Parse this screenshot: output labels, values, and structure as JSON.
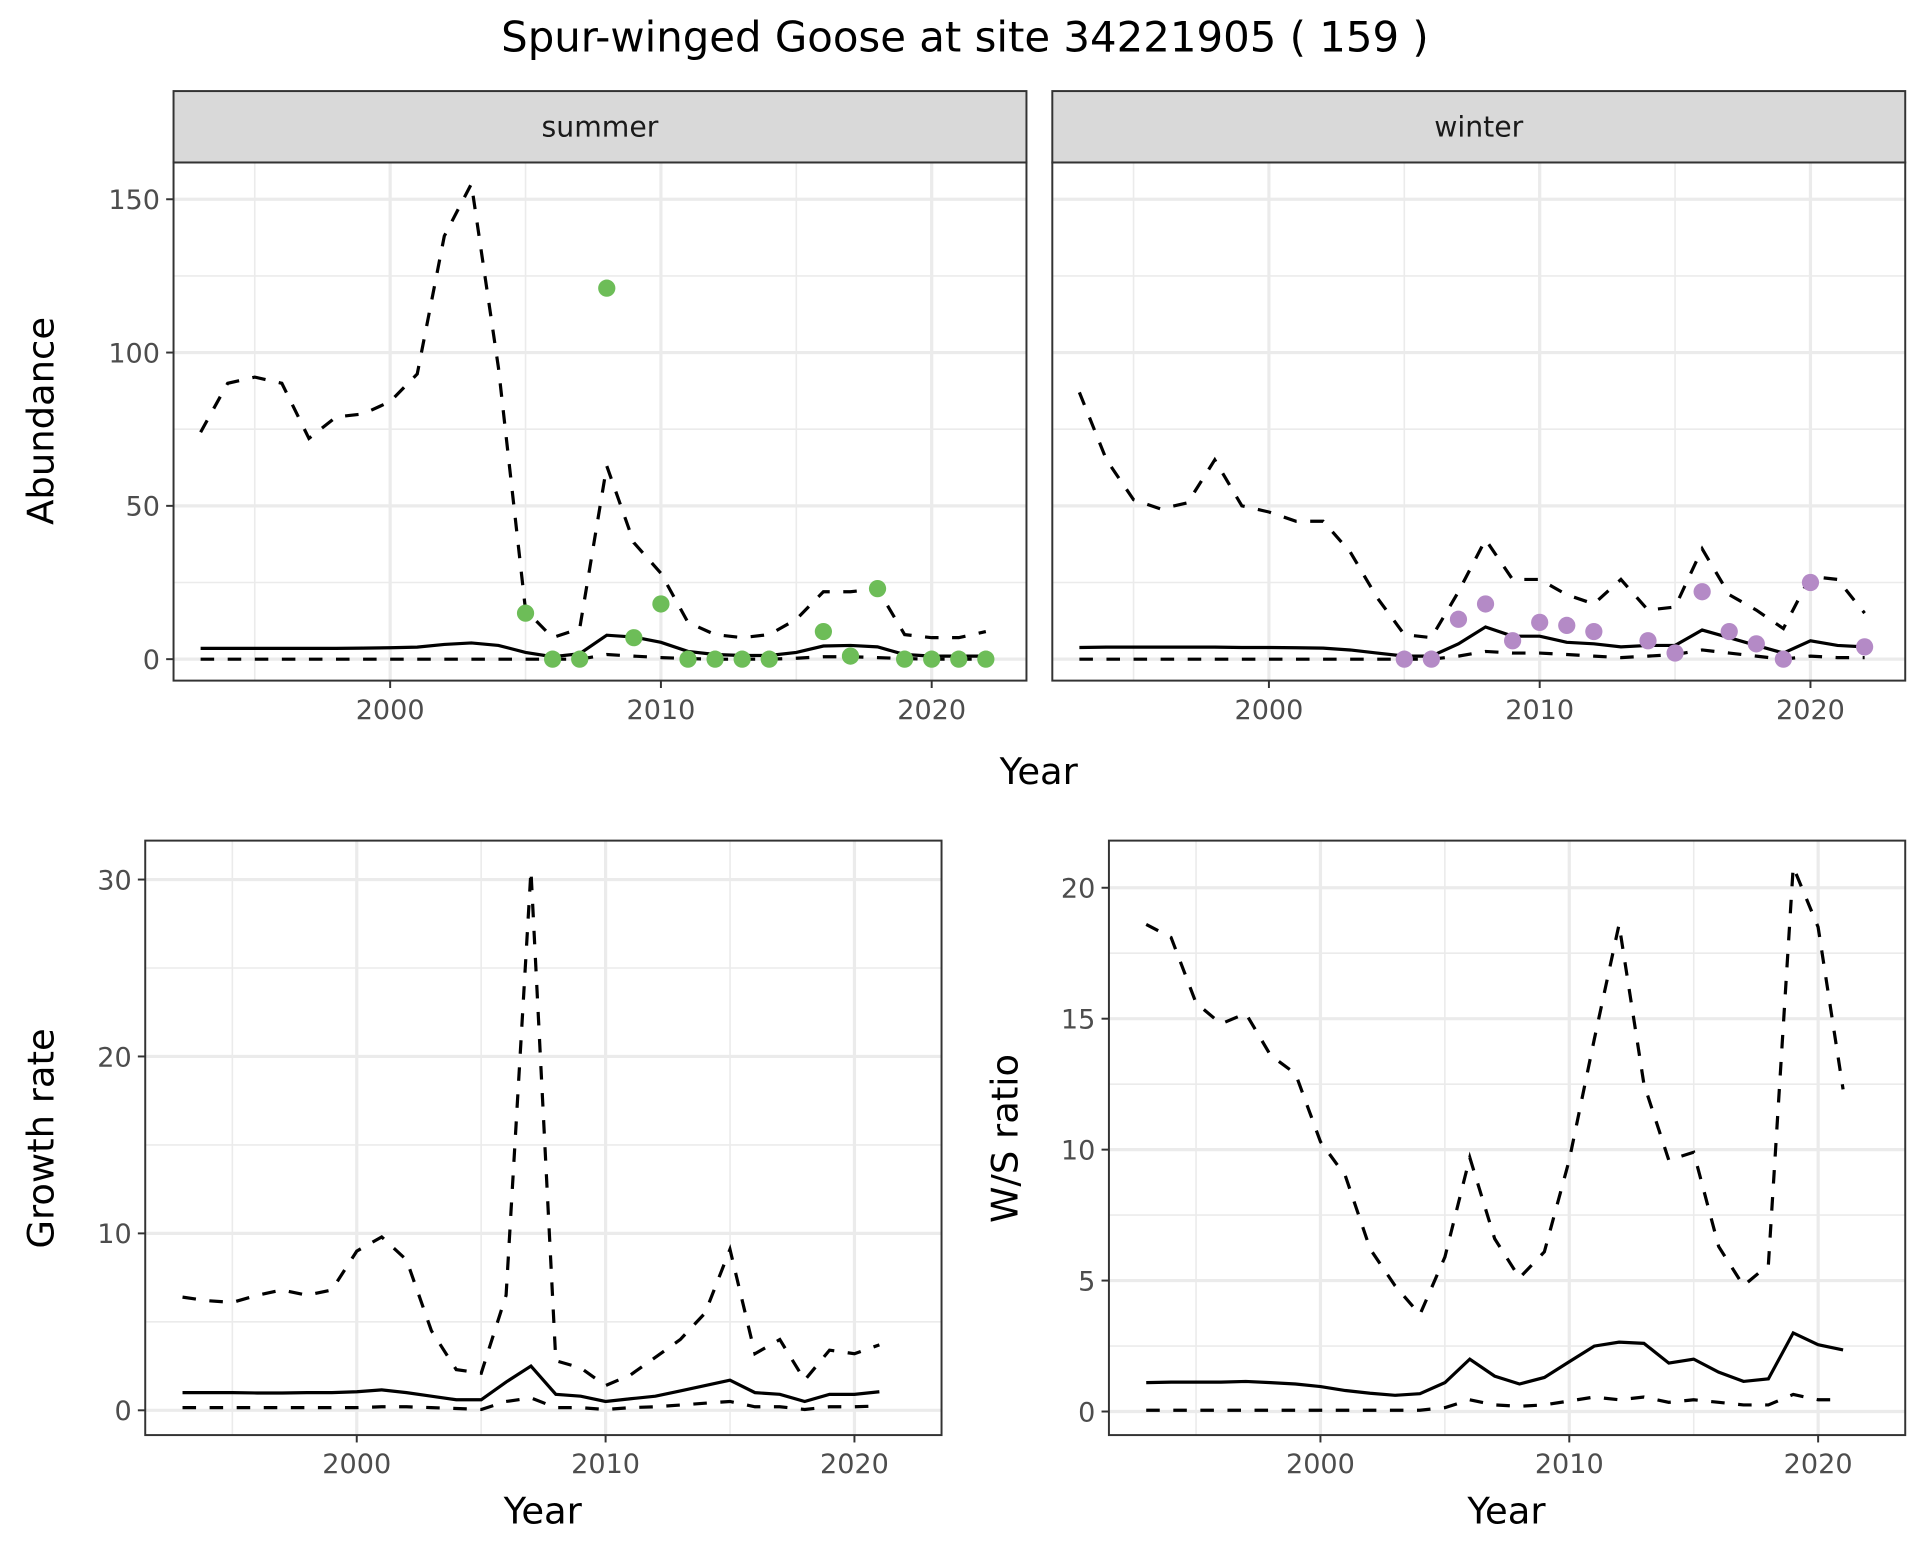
{
  "title": "Spur-winged Goose at site 34221905 ( 159 )",
  "colors": {
    "summer_points": "#6dbd58",
    "winter_points": "#b48ac6",
    "lines": "#000000",
    "grid": "#ebebeb",
    "strip": "#d9d9d9"
  },
  "chart_data": [
    {
      "type": "line",
      "facet": "summer",
      "ylabel": "Abundance",
      "xlabel": "Year",
      "xlim": [
        1992,
        2023.5
      ],
      "ylim": [
        -7,
        162
      ],
      "xticks": [
        2000,
        2010,
        2020
      ],
      "yticks": [
        0,
        50,
        100,
        150
      ],
      "grid": true,
      "x": [
        1993,
        1994,
        1995,
        1996,
        1997,
        1998,
        1999,
        2000,
        2001,
        2002,
        2003,
        2004,
        2005,
        2006,
        2007,
        2008,
        2009,
        2010,
        2011,
        2012,
        2013,
        2014,
        2015,
        2016,
        2017,
        2018,
        2019,
        2020,
        2021,
        2022
      ],
      "upper": [
        74,
        90,
        92,
        90,
        72,
        79,
        80,
        84,
        93,
        138,
        155,
        95,
        16,
        7,
        10,
        63,
        38,
        28,
        12,
        8,
        7,
        8,
        13,
        22,
        22,
        23,
        8,
        7,
        7,
        9
      ],
      "mean": [
        3.5,
        3.5,
        3.5,
        3.5,
        3.5,
        3.5,
        3.6,
        3.7,
        3.9,
        4.8,
        5.3,
        4.5,
        2.2,
        0.8,
        1.8,
        7.8,
        7.2,
        5.5,
        2.5,
        1.5,
        1.2,
        1.2,
        2.2,
        4.3,
        4.5,
        4,
        1.5,
        1,
        1,
        1
      ],
      "lower": [
        0,
        0,
        0,
        0,
        0,
        0,
        0,
        0,
        0,
        0,
        0,
        0,
        0,
        0,
        0,
        1.5,
        1,
        0.5,
        0.2,
        0,
        0,
        0,
        0.3,
        0.8,
        0.8,
        0.5,
        0.2,
        0,
        0,
        0
      ],
      "points": {
        "x": [
          2005,
          2006,
          2007,
          2008,
          2009,
          2010,
          2011,
          2012,
          2013,
          2014,
          2016,
          2017,
          2018,
          2019,
          2020,
          2021,
          2022
        ],
        "y": [
          15,
          0,
          0,
          121,
          7,
          18,
          0,
          0,
          0,
          0,
          9,
          1,
          23,
          0,
          0,
          0,
          0
        ]
      }
    },
    {
      "type": "line",
      "facet": "winter",
      "xlabel": "Year",
      "xlim": [
        1992,
        2023.5
      ],
      "ylim": [
        -7,
        162
      ],
      "xticks": [
        2000,
        2010,
        2020
      ],
      "yticks": [
        0,
        50,
        100,
        150
      ],
      "grid": true,
      "x": [
        1993,
        1994,
        1995,
        1996,
        1997,
        1998,
        1999,
        2000,
        2001,
        2002,
        2003,
        2004,
        2005,
        2006,
        2007,
        2008,
        2009,
        2010,
        2011,
        2012,
        2013,
        2014,
        2015,
        2016,
        2017,
        2018,
        2019,
        2020,
        2021,
        2022
      ],
      "upper": [
        87,
        65,
        52,
        49,
        51,
        65,
        50,
        48,
        45,
        45,
        35,
        20,
        8,
        7,
        22,
        39,
        26,
        26,
        21,
        18,
        26,
        16,
        17,
        36,
        21,
        16,
        10,
        27,
        26,
        15
      ],
      "mean": [
        3.8,
        3.9,
        3.9,
        3.9,
        3.9,
        3.9,
        3.8,
        3.8,
        3.7,
        3.6,
        3,
        2,
        1,
        1,
        5,
        10.5,
        7.5,
        7.5,
        5.5,
        5,
        4,
        4.5,
        4.5,
        9.5,
        7,
        4.5,
        2,
        6,
        4.5,
        4
      ],
      "lower": [
        0,
        0,
        0,
        0,
        0,
        0,
        0,
        0,
        0,
        0,
        0,
        0,
        0,
        0,
        1,
        2.5,
        2,
        2,
        1.5,
        1,
        0.5,
        1,
        1.5,
        3,
        2,
        1,
        0,
        1,
        0.5,
        0.5
      ],
      "points": {
        "x": [
          2005,
          2006,
          2007,
          2008,
          2009,
          2010,
          2011,
          2012,
          2014,
          2015,
          2016,
          2017,
          2018,
          2019,
          2020,
          2022
        ],
        "y": [
          0,
          0,
          13,
          18,
          6,
          12,
          11,
          9,
          6,
          2,
          22,
          9,
          5,
          0,
          25,
          4
        ]
      }
    },
    {
      "type": "line",
      "ylabel": "Growth rate",
      "xlabel": "Year",
      "xlim": [
        1991.5,
        2023.5
      ],
      "ylim": [
        -1.4,
        32.2
      ],
      "xticks": [
        2000,
        2010,
        2020
      ],
      "yticks": [
        0,
        10,
        20,
        30
      ],
      "grid": true,
      "x": [
        1993,
        1994,
        1995,
        1996,
        1997,
        1998,
        1999,
        2000,
        2001,
        2002,
        2003,
        2004,
        2005,
        2006,
        2007,
        2008,
        2009,
        2010,
        2011,
        2012,
        2013,
        2014,
        2015,
        2016,
        2017,
        2018,
        2019,
        2020,
        2021
      ],
      "upper": [
        6.4,
        6.2,
        6.1,
        6.5,
        6.8,
        6.5,
        6.8,
        9,
        9.8,
        8.5,
        4.5,
        2.3,
        2.1,
        6.5,
        30.5,
        2.8,
        2.4,
        1.4,
        2,
        3,
        4,
        5.5,
        9.1,
        3.2,
        4,
        1.7,
        3.4,
        3.2,
        3.7
      ],
      "mean": [
        1,
        1,
        1,
        0.98,
        0.98,
        1,
        1,
        1.05,
        1.15,
        1,
        0.8,
        0.6,
        0.6,
        1.6,
        2.5,
        0.9,
        0.8,
        0.5,
        0.65,
        0.8,
        1.1,
        1.4,
        1.7,
        1,
        0.9,
        0.5,
        0.9,
        0.9,
        1.05
      ],
      "lower": [
        0.15,
        0.15,
        0.15,
        0.15,
        0.15,
        0.15,
        0.15,
        0.15,
        0.2,
        0.2,
        0.15,
        0.1,
        0.05,
        0.5,
        0.7,
        0.15,
        0.15,
        0.05,
        0.15,
        0.2,
        0.3,
        0.4,
        0.5,
        0.2,
        0.2,
        0.05,
        0.2,
        0.2,
        0.25
      ]
    },
    {
      "type": "line",
      "ylabel": "W/S ratio",
      "xlabel": "Year",
      "xlim": [
        1991.5,
        2023.5
      ],
      "ylim": [
        -0.9,
        21.8
      ],
      "xticks": [
        2000,
        2010,
        2020
      ],
      "yticks": [
        0,
        5,
        10,
        15,
        20
      ],
      "grid": true,
      "x": [
        1993,
        1994,
        1995,
        1996,
        1997,
        1998,
        1999,
        2000,
        2001,
        2002,
        2003,
        2004,
        2005,
        2006,
        2007,
        2008,
        2009,
        2010,
        2011,
        2012,
        2013,
        2014,
        2015,
        2016,
        2017,
        2018,
        2019,
        2020,
        2021
      ],
      "upper": [
        18.6,
        18.1,
        15.6,
        14.8,
        15.2,
        13.6,
        12.9,
        10.3,
        9,
        6.2,
        4.8,
        3.7,
        5.9,
        9.7,
        6.6,
        5.1,
        6.1,
        9.6,
        14.2,
        18.6,
        12.5,
        9.6,
        9.9,
        6.3,
        4.8,
        5.6,
        20.8,
        18.5,
        12.3
      ],
      "mean": [
        1.1,
        1.12,
        1.12,
        1.12,
        1.15,
        1.1,
        1.05,
        0.95,
        0.8,
        0.7,
        0.62,
        0.68,
        1.1,
        2,
        1.35,
        1.05,
        1.3,
        1.9,
        2.5,
        2.65,
        2.6,
        1.85,
        2,
        1.5,
        1.15,
        1.25,
        3,
        2.55,
        2.35
      ],
      "lower": [
        0.05,
        0.05,
        0.05,
        0.05,
        0.05,
        0.05,
        0.05,
        0.05,
        0.05,
        0.05,
        0.05,
        0.05,
        0.15,
        0.45,
        0.25,
        0.2,
        0.25,
        0.4,
        0.55,
        0.45,
        0.55,
        0.35,
        0.45,
        0.35,
        0.25,
        0.25,
        0.65,
        0.45,
        0.45
      ]
    }
  ]
}
